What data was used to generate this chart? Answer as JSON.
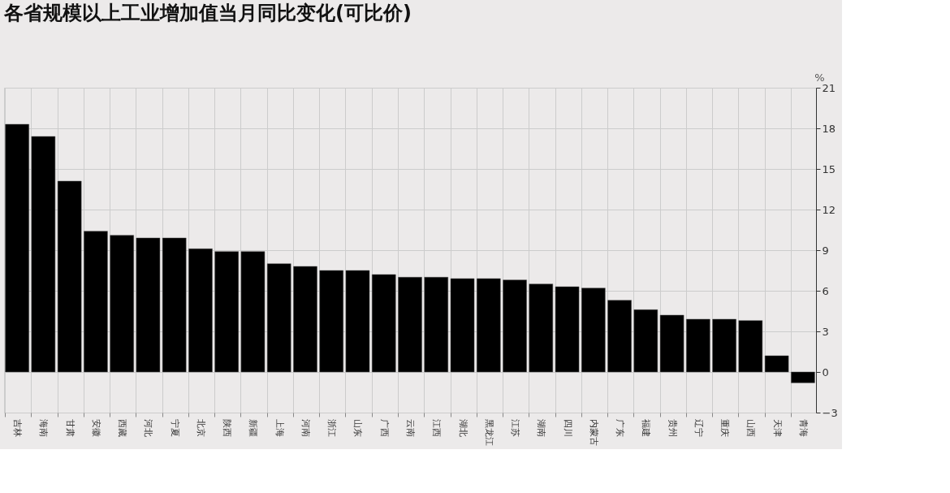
{
  "chart_data": {
    "type": "bar",
    "title": "各省规模以上工业增加值当月同比变化(可比价)",
    "ylabel": "%",
    "categories": [
      "吉林",
      "海南",
      "甘肃",
      "安徽",
      "西藏",
      "河北",
      "宁夏",
      "北京",
      "陕西",
      "新疆",
      "上海",
      "河南",
      "浙江",
      "山东",
      "广西",
      "云南",
      "江西",
      "湖北",
      "黑龙江",
      "江苏",
      "湖南",
      "四川",
      "内蒙古",
      "广东",
      "福建",
      "贵州",
      "辽宁",
      "重庆",
      "山西",
      "天津",
      "青海"
    ],
    "values": [
      18.3,
      17.4,
      14.1,
      10.4,
      10.1,
      9.9,
      9.9,
      9.1,
      8.9,
      8.9,
      8.0,
      7.8,
      7.5,
      7.5,
      7.2,
      7.0,
      7.0,
      6.9,
      6.9,
      6.8,
      6.5,
      6.3,
      6.2,
      5.3,
      4.6,
      4.2,
      3.9,
      3.9,
      3.8,
      1.2,
      -0.8
    ],
    "color": "#000000",
    "ylim": [
      -3,
      21
    ],
    "yticks": [
      -3,
      0,
      3,
      6,
      9,
      12,
      15,
      18,
      21
    ],
    "grid": true
  }
}
